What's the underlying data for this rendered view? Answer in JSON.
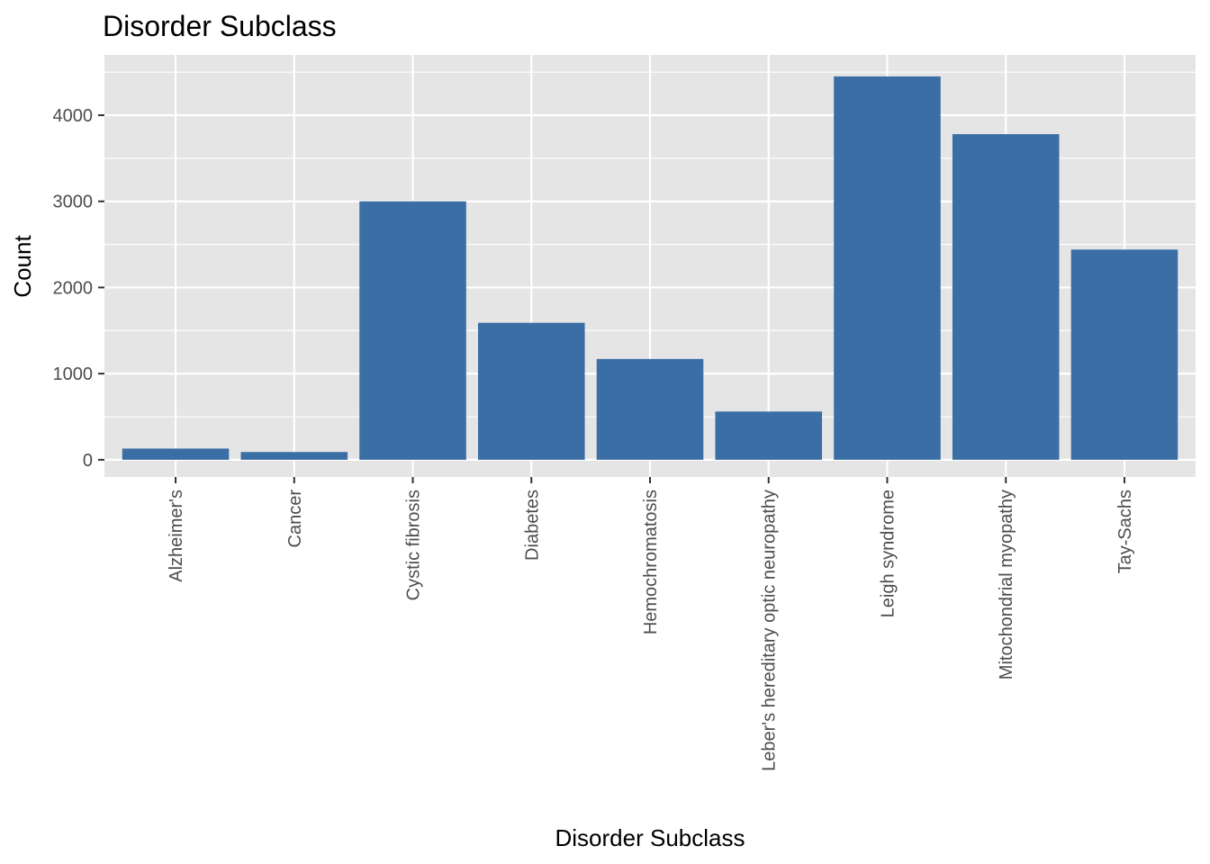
{
  "chart_data": {
    "type": "bar",
    "title": "Disorder Subclass",
    "xlabel": "Disorder Subclass",
    "ylabel": "Count",
    "categories": [
      "Alzheimer's",
      "Cancer",
      "Cystic fibrosis",
      "Diabetes",
      "Hemochromatosis",
      "Leber's hereditary optic neuropathy",
      "Leigh syndrome",
      "Mitochondrial myopathy",
      "Tay-Sachs"
    ],
    "values": [
      130,
      90,
      3000,
      1590,
      1170,
      560,
      4450,
      3780,
      2440
    ],
    "ylim": [
      -200,
      4700
    ],
    "yticks": [
      0,
      1000,
      2000,
      3000,
      4000
    ],
    "ytick_labels": [
      "0",
      "1000",
      "2000",
      "3000",
      "4000"
    ],
    "grid": true,
    "legend": "none",
    "colors": {
      "bar": "#3a6ea5",
      "panel": "#e5e5e5",
      "grid": "#ffffff"
    }
  }
}
